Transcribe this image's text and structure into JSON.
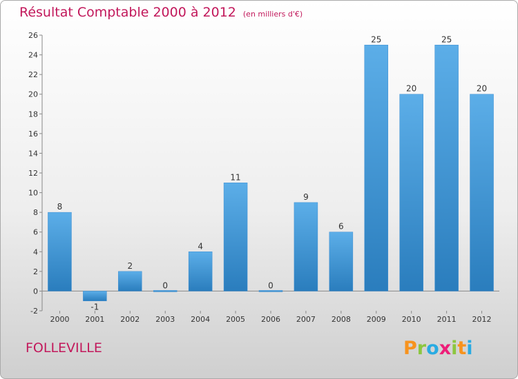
{
  "header": {
    "title": "Résultat Comptable 2000 à 2012",
    "subtitle": "(en milliers d'€)"
  },
  "footer": {
    "commune": "FOLLEVILLE",
    "logo_letters": [
      "P",
      "r",
      "o",
      "x",
      "i",
      "t",
      "i"
    ],
    "logo_colors": [
      "#f7931e",
      "#8cc63f",
      "#29abe2",
      "#ed1e79",
      "#8cc63f",
      "#f7931e",
      "#29abe2"
    ]
  },
  "chart_data": {
    "type": "bar",
    "title": "Résultat Comptable 2000 à 2012",
    "subtitle": "(en milliers d'€)",
    "categories": [
      "2000",
      "2001",
      "2002",
      "2003",
      "2004",
      "2005",
      "2006",
      "2007",
      "2008",
      "2009",
      "2010",
      "2011",
      "2012"
    ],
    "values": [
      8,
      -1,
      2,
      0,
      4,
      11,
      0,
      9,
      6,
      25,
      20,
      25,
      20
    ],
    "ylim": [
      -2,
      26
    ],
    "yticks": [
      -2,
      0,
      2,
      4,
      6,
      8,
      10,
      12,
      14,
      16,
      18,
      20,
      22,
      24,
      26
    ],
    "grid": false,
    "bar_color": "#4a9fe0"
  }
}
